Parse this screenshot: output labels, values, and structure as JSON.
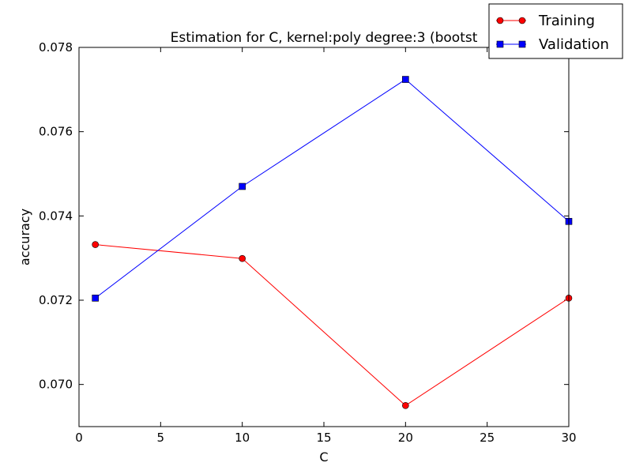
{
  "chart_data": {
    "type": "line",
    "title": "Estimation for C, kernel:poly degree:3 (bootst",
    "xlabel": "C",
    "ylabel": "accuracy",
    "xlim": [
      0,
      30
    ],
    "ylim": [
      0.069,
      0.078
    ],
    "xticks": [
      0,
      5,
      10,
      15,
      20,
      25,
      30
    ],
    "xtick_labels": [
      "0",
      "5",
      "10",
      "15",
      "20",
      "25",
      "30"
    ],
    "yticks": [
      0.07,
      0.072,
      0.074,
      0.076,
      0.078
    ],
    "ytick_labels": [
      "0.070",
      "0.072",
      "0.074",
      "0.076",
      "0.078"
    ],
    "grid": false,
    "legend": {
      "placement": "top-right"
    },
    "x": [
      1,
      10,
      20,
      30
    ],
    "series": [
      {
        "name": "Training",
        "color": "#ff0000",
        "marker": "circle",
        "values": [
          0.07332,
          0.07299,
          0.0695,
          0.07205
        ]
      },
      {
        "name": "Validation",
        "color": "#0000ff",
        "marker": "square",
        "values": [
          0.07205,
          0.0747,
          0.07724,
          0.07387
        ]
      }
    ]
  }
}
